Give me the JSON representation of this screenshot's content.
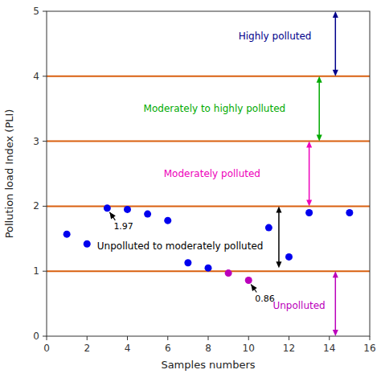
{
  "chart_data": {
    "type": "scatter",
    "xlabel": "Samples numbers",
    "ylabel": "Pollution load Index (PLI)",
    "xlim": [
      0,
      16
    ],
    "ylim": [
      0,
      5
    ],
    "xticks": [
      0,
      2,
      4,
      6,
      8,
      10,
      12,
      14,
      16
    ],
    "yticks": [
      0,
      1,
      2,
      3,
      4,
      5
    ],
    "grid": false,
    "series": [
      {
        "color": "#0000ee",
        "marker": "circle",
        "x": [
          1,
          2,
          3,
          4,
          5,
          6,
          7,
          8,
          11,
          12,
          13,
          15
        ],
        "values": [
          1.57,
          1.42,
          1.97,
          1.95,
          1.88,
          1.78,
          1.13,
          1.05,
          1.67,
          1.22,
          1.9,
          1.9
        ]
      },
      {
        "color": "#bb00bb",
        "marker": "circle",
        "x": [
          9,
          10
        ],
        "values": [
          0.97,
          0.86
        ]
      }
    ],
    "hlines": {
      "values": [
        1.0,
        2.0,
        3.0,
        4.0
      ],
      "color": "#d96010"
    },
    "annotations": [
      {
        "text": "1.97",
        "x": 3,
        "y": 1.97
      },
      {
        "text": "0.86",
        "x": 10,
        "y": 0.86
      }
    ],
    "zones": [
      {
        "text": "Highly polluted",
        "color": "#00008B",
        "label_x": 9.5,
        "label_y": 4.62,
        "x": 14.3,
        "from": 5.0,
        "to": 4.0
      },
      {
        "text": "Moderately to highly polluted",
        "color": "#00aa00",
        "label_x": 4.8,
        "label_y": 3.5,
        "x": 13.5,
        "from": 4.0,
        "to": 3.0
      },
      {
        "text": "Moderately polluted",
        "color": "#ee00bb",
        "label_x": 5.8,
        "label_y": 2.5,
        "x": 13.0,
        "from": 3.0,
        "to": 2.0
      },
      {
        "text": "Unpolluted to moderately polluted",
        "color": "#000000",
        "label_x": 2.5,
        "label_y": 1.38,
        "x": 11.5,
        "from": 2.0,
        "to": 1.05
      },
      {
        "text": "Unpolluted",
        "color": "#bb00bb",
        "label_x": 11.2,
        "label_y": 0.47,
        "x": 14.3,
        "from": 1.0,
        "to": 0.0
      }
    ]
  }
}
